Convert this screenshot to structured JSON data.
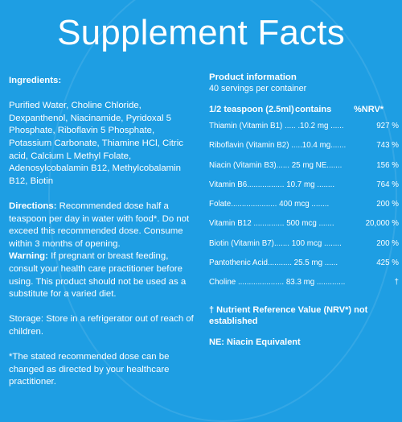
{
  "title": "Supplement Facts",
  "ingredients": {
    "heading": "Ingredients:",
    "text": "Purified Water, Choline Chloride, Dexpanthenol, Niacinamide, Pyridoxal 5 Phosphate, Riboflavin 5 Phosphate, Potassium Carbonate, Thiamine HCl, Citric acid, Calcium L Methyl Folate, Adenosylcobalamin B12, Methylcobalamin B12, Biotin"
  },
  "directions": {
    "heading": "Directions:",
    "text": " Recommended dose half a teaspoon per day in water with food*. Do not exceed this recommended dose. Consume within 3 months of opening."
  },
  "warning": {
    "heading": "Warning:",
    "text": " If pregnant or breast feeding, consult your health care practitioner before using. This  product should not be used as a substitute for a varied diet."
  },
  "storage": "Storage: Store in a refrigerator out of reach of children.",
  "footnote": "*The stated recommended dose can be changed as directed by your healthcare practitioner.",
  "product": {
    "heading": "Product information",
    "servings": "40 servings per container",
    "col_serving": "1/2 teaspoon (2.5ml)",
    "col_contains": "contains",
    "col_nrv": "%NRV*",
    "rows": [
      {
        "line": "Thiamin (Vitamin B1) ..... .10.2 mg  ......",
        "pct": "927 %"
      },
      {
        "line": "Riboflavin (Vitamin B2) .....10.4 mg.......",
        "pct": "743 %"
      },
      {
        "line": "Niacin (Vitamin B3)......  25 mg NE.......",
        "pct": "156 %"
      },
      {
        "line": "Vitamin B6.................  10.7 mg ........",
        "pct": "764 %"
      },
      {
        "line": "Folate.....................  400 mcg ........",
        "pct": "200 %"
      },
      {
        "line": "Vitamin B12     ..............  500 mcg .......",
        "pct": "20,000 %"
      },
      {
        "line": "Biotin (Vitamin B7).......  100 mcg ........",
        "pct": "200 %"
      },
      {
        "line": "Pantothenic Acid...........  25.5 mg  ......",
        "pct": "425 %"
      },
      {
        "line": "Choline .....................  83.3 mg  .............",
        "pct": "†"
      }
    ],
    "nrv_note": "† Nutrient Reference Value (NRV*) not established",
    "ne_note": "NE: Niacin Equivalent"
  }
}
